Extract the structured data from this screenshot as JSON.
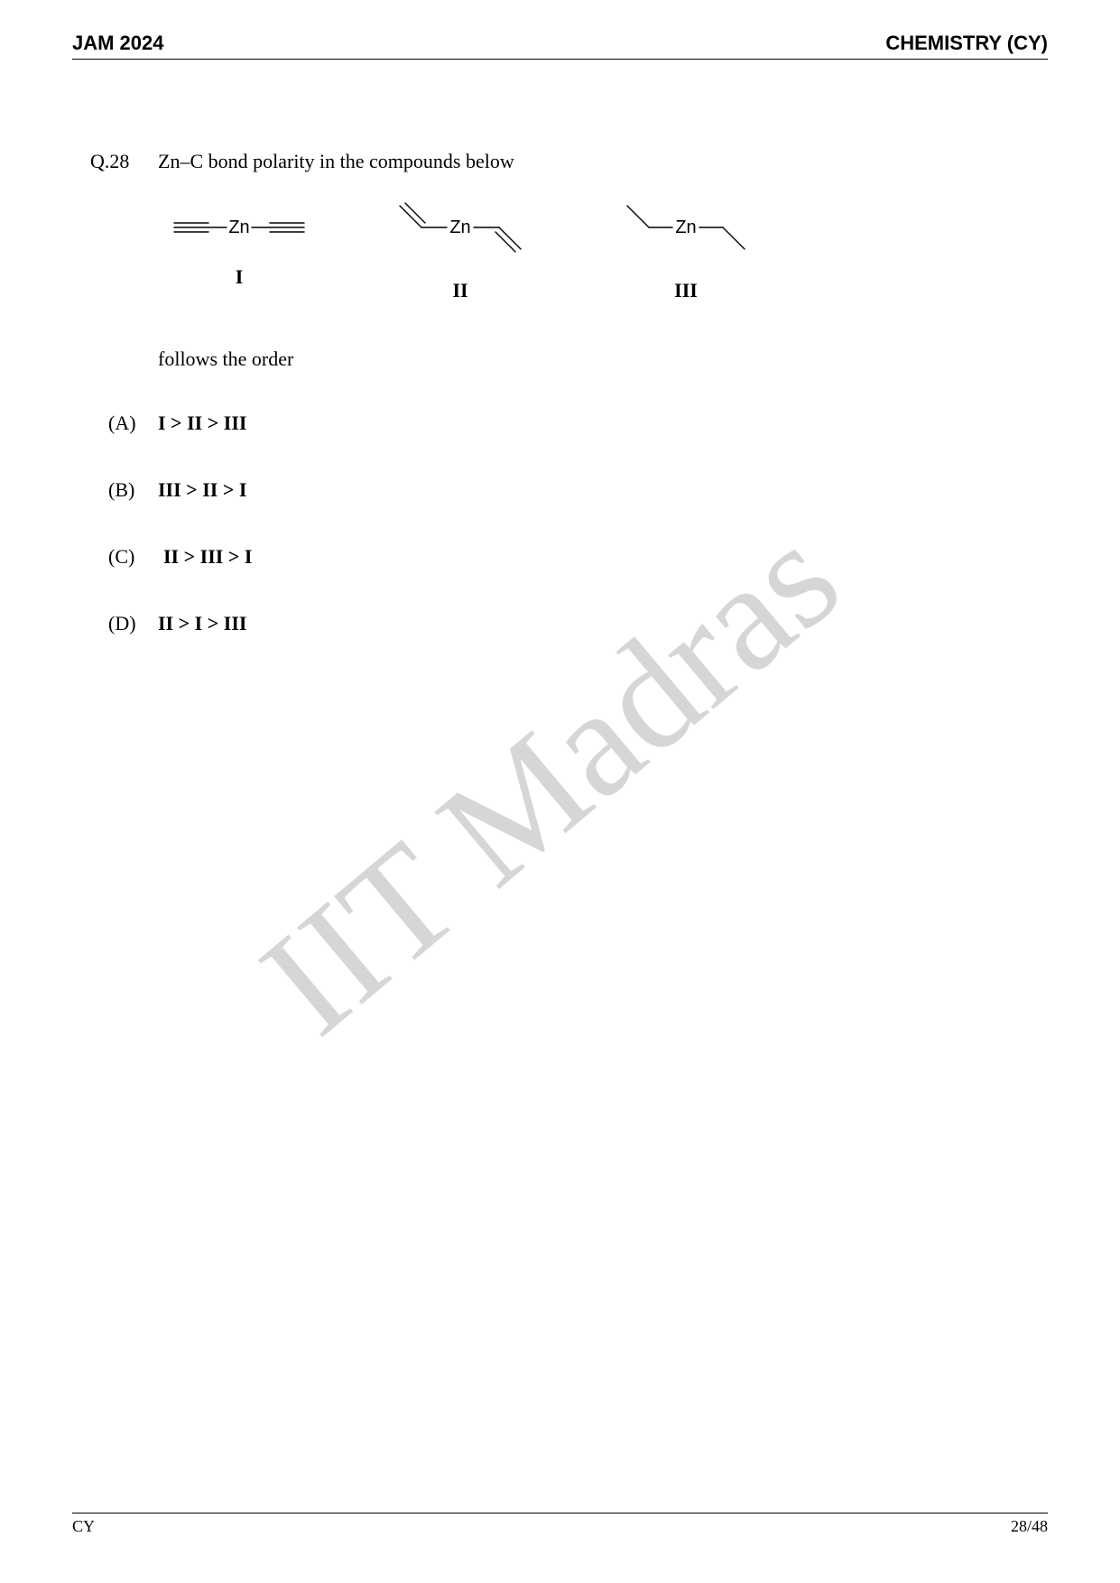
{
  "header": {
    "left": "JAM 2024",
    "right": "CHEMISTRY (CY)"
  },
  "question": {
    "number": "Q.28",
    "stem_before": "Zn–C bond polarity in the compounds below",
    "stem_after": "follows the order",
    "compounds": {
      "labels": [
        "I",
        "II",
        "III"
      ],
      "zn_text": "Zn",
      "zn_font": "Arial, Helvetica, sans-serif",
      "zn_fontsize": 20,
      "stroke_color": "#000000",
      "stroke_width": 1.4
    }
  },
  "options": [
    {
      "label": "(A)",
      "text": "I > II > III"
    },
    {
      "label": "(B)",
      "text": "III > II > I"
    },
    {
      "label": "(C)",
      "text": "II > III > I"
    },
    {
      "label": "(D)",
      "text": "II > I > III"
    }
  ],
  "watermark": {
    "text": "IIT Madras",
    "color": "#d6d6d6",
    "fontsize": 170,
    "rotate_deg": 40,
    "font_family": "Times New Roman, Times, serif"
  },
  "footer": {
    "left": "CY",
    "right": "28/48"
  }
}
